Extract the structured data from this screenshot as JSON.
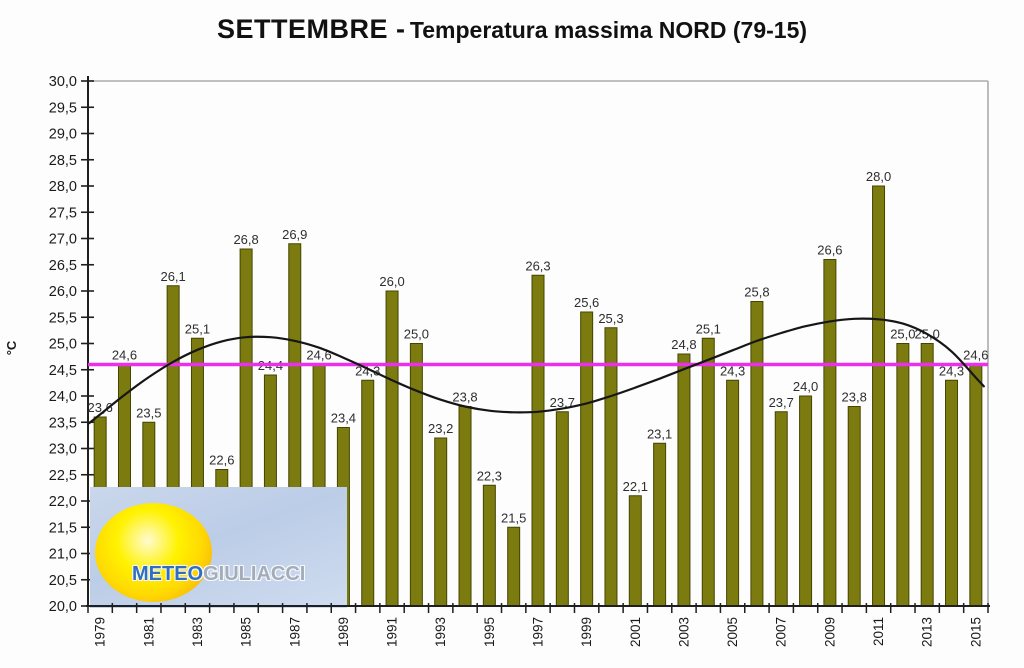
{
  "title": {
    "main": "SETTEMBRE -",
    "sub": "Temperatura massima NORD (79-15)"
  },
  "chart_data": {
    "type": "bar",
    "title": "SETTEMBRE - Temperatura massima NORD (79-15)",
    "xlabel": "",
    "ylabel": "°C",
    "ylim": [
      20.0,
      30.0
    ],
    "ytick_step": 0.5,
    "grid": "off",
    "legend": "none",
    "categories": [
      1979,
      1980,
      1981,
      1982,
      1983,
      1984,
      1985,
      1986,
      1987,
      1988,
      1989,
      1990,
      1991,
      1992,
      1993,
      1994,
      1995,
      1996,
      1997,
      1998,
      1999,
      2000,
      2001,
      2002,
      2003,
      2004,
      2005,
      2006,
      2007,
      2008,
      2009,
      2010,
      2011,
      2012,
      2013,
      2014,
      2015
    ],
    "values": [
      23.6,
      24.6,
      23.5,
      26.1,
      25.1,
      22.6,
      26.8,
      24.4,
      26.9,
      24.6,
      23.4,
      24.3,
      26.0,
      25.0,
      23.2,
      23.8,
      22.3,
      21.5,
      26.3,
      23.7,
      25.6,
      25.3,
      22.1,
      23.1,
      24.8,
      25.1,
      24.3,
      25.8,
      23.7,
      24.0,
      26.6,
      23.8,
      28.0,
      25.0,
      25.0,
      24.3,
      24.6
    ],
    "bar_labels": [
      "23,6",
      "24,6",
      "23,5",
      "26,1",
      "25,1",
      "22,6",
      "26,8",
      "24,4",
      "26,9",
      "24,6",
      "23,4",
      "24,3",
      "26,0",
      "25,0",
      "23,2",
      "23,8",
      "22,3",
      "21,5",
      "26,3",
      "23,7",
      "25,6",
      "25,3",
      "22,1",
      "23,1",
      "24,8",
      "25,1",
      "24,3",
      "25,8",
      "23,7",
      "24,0",
      "26,6",
      "23,8",
      "28,0",
      "25,0",
      "25,0",
      "24,3",
      "24,6"
    ],
    "x_axis_labels": [
      "1979",
      "1981",
      "1983",
      "1985",
      "1987",
      "1989",
      "1991",
      "1993",
      "1995",
      "1997",
      "1999",
      "2001",
      "2003",
      "2005",
      "2007",
      "2009",
      "2011",
      "2013",
      "2015"
    ],
    "y_axis_labels": [
      "30,0",
      "29,5",
      "29,0",
      "28,5",
      "28,0",
      "27,5",
      "27,0",
      "26,5",
      "26,0",
      "25,5",
      "25,0",
      "24,5",
      "24,0",
      "23,5",
      "23,0",
      "22,5",
      "22,0",
      "21,5",
      "21,0",
      "20,5",
      "20,0"
    ],
    "mean_line": {
      "value": 24.6,
      "color": "#EB30EB"
    },
    "trend_line": {
      "color": "#161616",
      "values": [
        23.65,
        24.02,
        24.36,
        24.65,
        24.88,
        25.04,
        25.12,
        25.12,
        25.05,
        24.92,
        24.73,
        24.52,
        24.3,
        24.1,
        23.93,
        23.8,
        23.72,
        23.69,
        23.7,
        23.76,
        23.86,
        24.0,
        24.16,
        24.33,
        24.51,
        24.69,
        24.87,
        25.05,
        25.2,
        25.33,
        25.42,
        25.47,
        25.46,
        25.38,
        25.18,
        24.85,
        24.35
      ]
    },
    "colors": {
      "bar_fill": "#7B7B10",
      "bar_border": "#454500",
      "axis": "#1f1f1f",
      "frame": "#ababab",
      "value_label": "#2e2e2e"
    }
  },
  "logo": {
    "text_meteo": "METEO",
    "text_giuliacci": "GIULIACCI",
    "colors": {
      "panel": "#C2CFE8",
      "sun": "#FFD803",
      "meteo_text": "#2F6EC0",
      "giuliacci_text": "#A3ADB9"
    }
  }
}
